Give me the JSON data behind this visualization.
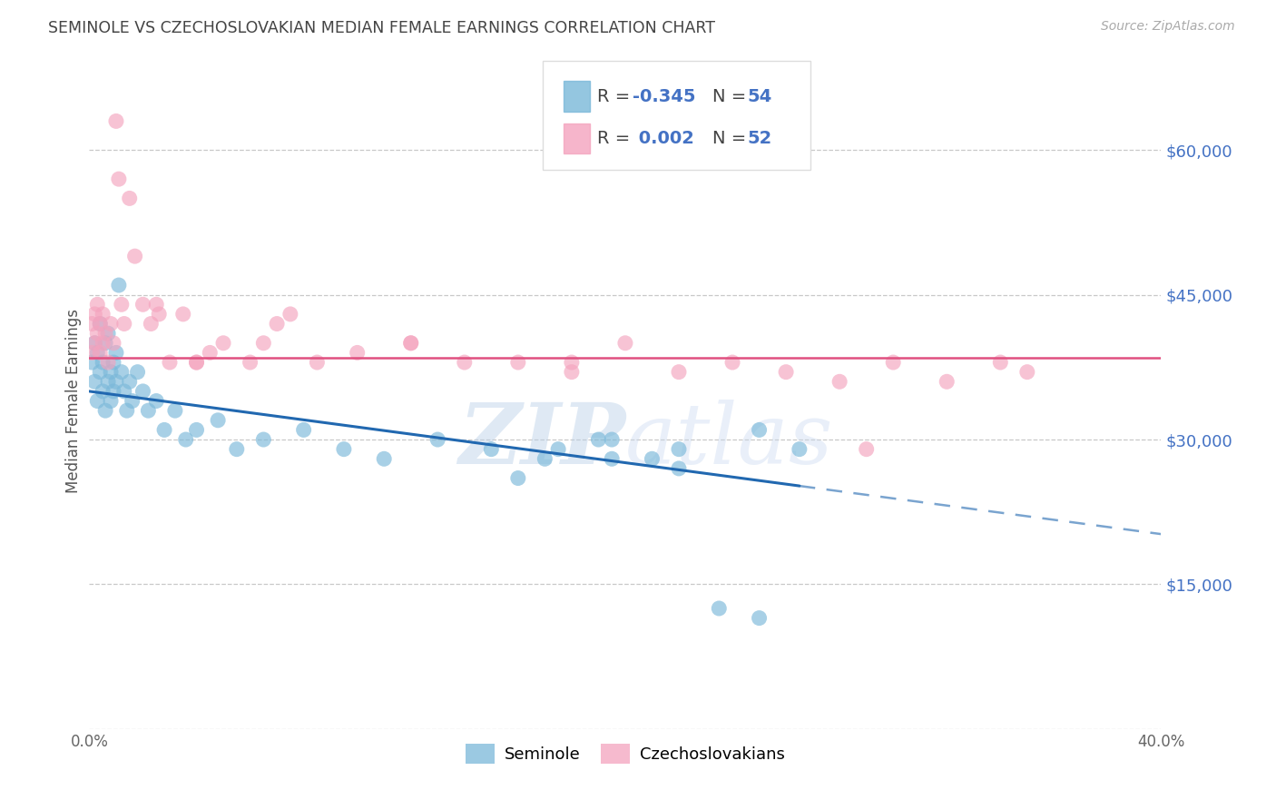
{
  "title": "SEMINOLE VS CZECHOSLOVAKIAN MEDIAN FEMALE EARNINGS CORRELATION CHART",
  "source": "Source: ZipAtlas.com",
  "ylabel": "Median Female Earnings",
  "yticks": [
    0,
    15000,
    30000,
    45000,
    60000
  ],
  "ytick_labels": [
    "",
    "$15,000",
    "$30,000",
    "$45,000",
    "$60,000"
  ],
  "xlim": [
    0.0,
    0.4
  ],
  "ylim": [
    0,
    68000
  ],
  "watermark": "ZIPatlas",
  "seminole_color": "#7ab8d9",
  "czech_color": "#f4a3be",
  "seminole_line_color": "#2168b0",
  "czech_line_color": "#e05080",
  "background_color": "#ffffff",
  "grid_color": "#c8c8c8",
  "seminole_x": [
    0.001,
    0.002,
    0.002,
    0.003,
    0.003,
    0.004,
    0.004,
    0.005,
    0.005,
    0.006,
    0.006,
    0.007,
    0.007,
    0.008,
    0.008,
    0.009,
    0.009,
    0.01,
    0.01,
    0.011,
    0.012,
    0.013,
    0.014,
    0.015,
    0.016,
    0.018,
    0.02,
    0.022,
    0.025,
    0.028,
    0.032,
    0.036,
    0.04,
    0.048,
    0.055,
    0.065,
    0.08,
    0.095,
    0.11,
    0.13,
    0.15,
    0.17,
    0.195,
    0.22,
    0.25,
    0.265,
    0.195,
    0.16,
    0.22,
    0.175,
    0.19,
    0.21,
    0.235,
    0.25
  ],
  "seminole_y": [
    38000,
    36000,
    40000,
    34000,
    39000,
    37000,
    42000,
    35000,
    38000,
    33000,
    40000,
    36000,
    41000,
    34000,
    37000,
    35000,
    38000,
    36000,
    39000,
    46000,
    37000,
    35000,
    33000,
    36000,
    34000,
    37000,
    35000,
    33000,
    34000,
    31000,
    33000,
    30000,
    31000,
    32000,
    29000,
    30000,
    31000,
    29000,
    28000,
    30000,
    29000,
    28000,
    30000,
    29000,
    31000,
    29000,
    28000,
    26000,
    27000,
    29000,
    30000,
    28000,
    12500,
    11500
  ],
  "czech_x": [
    0.001,
    0.001,
    0.002,
    0.002,
    0.003,
    0.003,
    0.004,
    0.004,
    0.005,
    0.005,
    0.006,
    0.007,
    0.008,
    0.009,
    0.01,
    0.011,
    0.012,
    0.013,
    0.015,
    0.017,
    0.02,
    0.023,
    0.026,
    0.03,
    0.035,
    0.04,
    0.05,
    0.06,
    0.07,
    0.085,
    0.1,
    0.12,
    0.14,
    0.16,
    0.18,
    0.2,
    0.22,
    0.24,
    0.26,
    0.28,
    0.3,
    0.32,
    0.34,
    0.35,
    0.065,
    0.12,
    0.18,
    0.04,
    0.075,
    0.025,
    0.045,
    0.29
  ],
  "czech_y": [
    42000,
    39000,
    43000,
    40000,
    44000,
    41000,
    42000,
    39000,
    43000,
    40000,
    41000,
    38000,
    42000,
    40000,
    63000,
    57000,
    44000,
    42000,
    55000,
    49000,
    44000,
    42000,
    43000,
    38000,
    43000,
    38000,
    40000,
    38000,
    42000,
    38000,
    39000,
    40000,
    38000,
    38000,
    37000,
    40000,
    37000,
    38000,
    37000,
    36000,
    38000,
    36000,
    38000,
    37000,
    40000,
    40000,
    38000,
    38000,
    43000,
    44000,
    39000,
    29000
  ]
}
